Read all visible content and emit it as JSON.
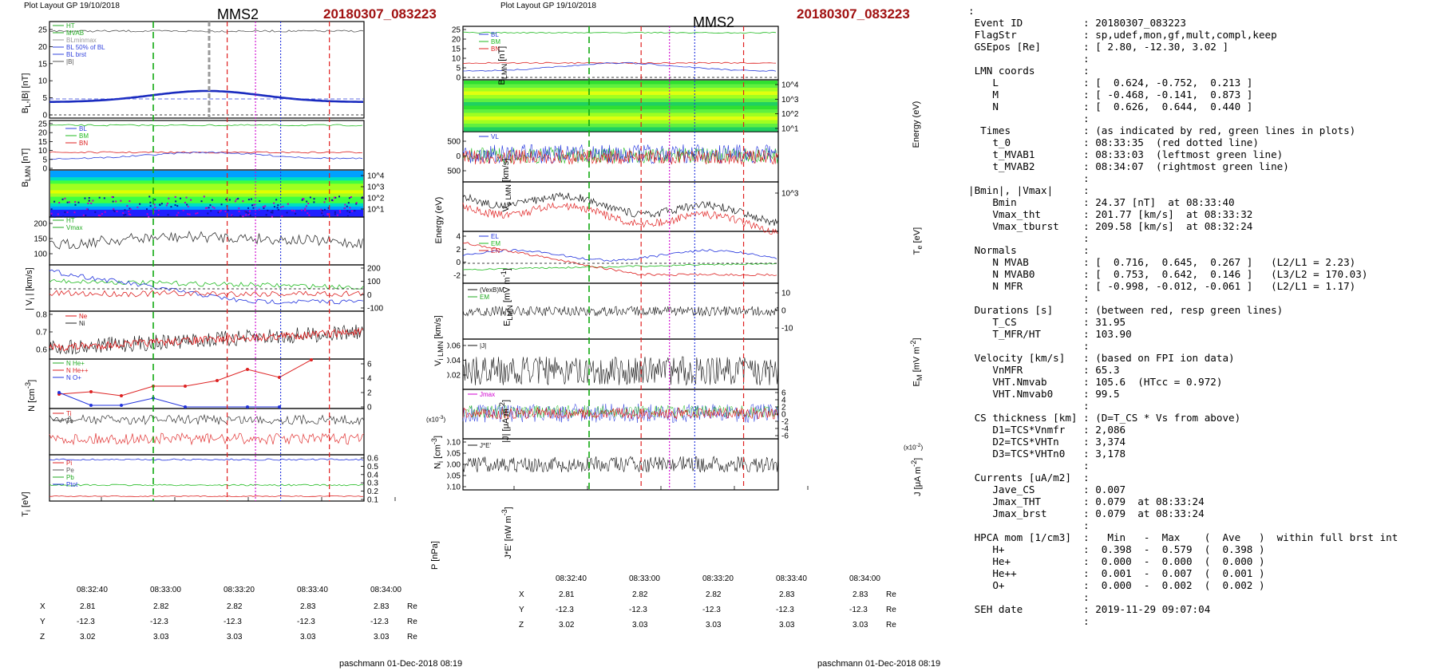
{
  "left": {
    "plot_layout": "Plot Layout GP 19/10/2018",
    "spacecraft": "MMS2",
    "event_id": "20180307_083223",
    "footer": "paschmann 01-Dec-2018 08:19",
    "time_ticks": [
      "08:32:40",
      "08:33:00",
      "08:33:20",
      "08:33:40",
      "08:34:00"
    ],
    "coord_rows": [
      {
        "label": "X",
        "values": [
          "2.81",
          "2.82",
          "2.82",
          "2.83",
          "2.83"
        ],
        "unit": "Re"
      },
      {
        "label": "Y",
        "values": [
          "-12.3",
          "-12.3",
          "-12.3",
          "-12.3",
          "-12.3"
        ],
        "unit": "Re"
      },
      {
        "label": "Z",
        "values": [
          "3.02",
          "3.03",
          "3.03",
          "3.03",
          "3.03"
        ],
        "unit": "Re"
      }
    ]
  },
  "right": {
    "plot_layout": "Plot Layout GP 19/10/2018",
    "spacecraft": "MMS2",
    "event_id": "20180307_083223",
    "footer": "paschmann 01-Dec-2018 08:19",
    "time_ticks": [
      "08:32:40",
      "08:33:00",
      "08:33:20",
      "08:33:40",
      "08:34:00"
    ],
    "coord_rows": [
      {
        "label": "X",
        "values": [
          "2.81",
          "2.82",
          "2.82",
          "2.83",
          "2.83"
        ],
        "unit": "Re"
      },
      {
        "label": "Y",
        "values": [
          "-12.3",
          "-12.3",
          "-12.3",
          "-12.3",
          "-12.3"
        ],
        "unit": "Re"
      },
      {
        "label": "Z",
        "values": [
          "3.02",
          "3.03",
          "3.03",
          "3.03",
          "3.03"
        ],
        "unit": "Re"
      }
    ]
  },
  "info_text": ":\n Event ID          : 20180307_083223\n FlagStr           : sp,udef,mon,gf,mult,compl,keep\n GSEpos [Re]       : [ 2.80, -12.30, 3.02 ]\n                   :\n LMN coords        :\n    L              : [  0.624, -0.752,  0.213 ]\n    M              : [ -0.468, -0.141,  0.873 ]\n    N              : [  0.626,  0.644,  0.440 ]\n                   :\n  Times            : (as indicated by red, green lines in plots)\n    t_0            : 08:33:35  (red dotted line)\n    t_MVAB1        : 08:33:03  (leftmost green line)\n    t_MVAB2        : 08:34:07  (rightmost green line)\n                   :\n|Bmin|, |Vmax|     :\n    Bmin           : 24.37 [nT]  at 08:33:40\n    Vmax_tht       : 201.77 [km/s]  at 08:33:32\n    Vmax_tburst    : 209.58 [km/s]  at 08:32:24\n                   :\n Normals           :\n    N MVAB         : [  0.716,  0.645,  0.267 ]   (L2/L1 = 2.23)\n    N MVAB0        : [  0.753,  0.642,  0.146 ]   (L3/L2 = 170.03)\n    N MFR          : [ -0.998, -0.012, -0.061 ]   (L2/L1 = 1.17)\n                   :\n Durations [s]     : (between red, resp green lines)\n    T_CS           : 31.95\n    T_MFR/HT       : 103.90\n                   :\n Velocity [km/s]   : (based on FPI ion data)\n    VnMFR          : 65.3\n    VHT.Nmvab      : 105.6  (HTcc = 0.972)\n    VHT.Nmvab0     : 99.5\n                   :\n CS thickness [km] : (D=T_CS * Vs from above)\n    D1=TCS*Vnmfr   : 2,086\n    D2=TCS*VHTn    : 3,374\n    D3=TCS*VHTn0   : 3,178\n                   :\n Currents [uA/m2]  :\n    Jave_CS        : 0.007\n    Jmax_THT       : 0.079  at 08:33:24\n    Jmax_brst      : 0.079  at 08:33:24\n                   :\n HPCA mom [1/cm3]  :   Min   -  Max    (  Ave   )  within full brst int\n    H+             :  0.398  -  0.579  (  0.398 )\n    He+            :  0.000  -  0.000  (  0.000 )\n    He++           :  0.001  -  0.007  (  0.001 )\n    O+             :  0.000  -  0.002  (  0.002 )\n                   :\n SEH date          : 2019-11-29 09:07:04\n                   :",
  "chart_data": [
    {
      "type": "line",
      "title": "MMS2 20180307_083223",
      "panels": [
        {
          "ylabel": "BL,|B| [nT]",
          "yticks": [
            "0",
            "5",
            "10",
            "15",
            "20",
            "25"
          ],
          "ylim": [
            0,
            27
          ],
          "legend": [
            "HT",
            "MVAB",
            "BLminmax",
            "BL 50% of BL",
            "BL brst",
            "|B|"
          ],
          "series": [
            {
              "name": "|B|",
              "color": "#555555",
              "level": 24.5
            },
            {
              "name": "BL",
              "color": "#1f2fbf",
              "shape": "hump"
            }
          ]
        },
        {
          "ylabel": "BLMN [nT]",
          "yticks": [
            "0",
            "5",
            "10",
            "15",
            "20",
            "25"
          ],
          "ylim": [
            0,
            27
          ],
          "legend": [
            "BL",
            "BM",
            "BN"
          ],
          "series": [
            {
              "name": "BL",
              "color": "#2b3fdc"
            },
            {
              "name": "BM",
              "color": "#22bb22"
            },
            {
              "name": "BN",
              "color": "#dd2222"
            }
          ]
        },
        {
          "ylabel": "Energy (eV)",
          "type": "heatmap",
          "yticks": [
            "10^1",
            "10^2",
            "10^3",
            "10^4"
          ]
        },
        {
          "ylabel": "|Vi| [km/s]",
          "yticks": [
            "100",
            "150",
            "200"
          ],
          "ylim": [
            60,
            215
          ],
          "legend": [
            "HT",
            "Vmax"
          ]
        },
        {
          "ylabel": "Vi LMN [km/s]",
          "yticks": [
            "-100",
            "0",
            "100",
            "200"
          ],
          "ylim": [
            -140,
            220
          ]
        },
        {
          "ylabel": "N [cm-3]",
          "yticks": [
            "0.6",
            "0.7",
            "0.8"
          ],
          "ylim": [
            0.55,
            0.82
          ],
          "legend": [
            "Ne",
            "Ni"
          ]
        },
        {
          "ylabel": "Ni [cm-3] (x10-3)",
          "yticks": [
            "0",
            "2",
            "4",
            "6"
          ],
          "ylim": [
            0,
            6
          ],
          "legend": [
            "N He+",
            "N He++",
            "N O+"
          ]
        },
        {
          "ylabel": "Ti [eV]",
          "legend": [
            "Ti",
            "Te"
          ]
        },
        {
          "ylabel": "P [nPa]",
          "yticks": [
            "0.1",
            "0.2",
            "0.3",
            "0.4",
            "0.5",
            "0.6"
          ],
          "ylim": [
            0.1,
            0.65
          ],
          "legend": [
            "Pi",
            "Pe",
            "Pb",
            "Ptot"
          ]
        }
      ]
    },
    {
      "type": "line",
      "title": "MMS2 20180307_083223",
      "panels": [
        {
          "ylabel": "BLMN [nT]",
          "yticks": [
            "0",
            "5",
            "10",
            "15",
            "20",
            "25"
          ],
          "ylim": [
            0,
            27
          ],
          "legend": [
            "BL",
            "BM",
            "BN"
          ]
        },
        {
          "ylabel": "Energy (eV)",
          "type": "heatmap",
          "yticks": [
            "10^1",
            "10^2",
            "10^3",
            "10^4"
          ]
        },
        {
          "ylabel": "Ve LMN [km/s]",
          "yticks": [
            "-500",
            "0",
            "500"
          ],
          "ylim": [
            -700,
            700
          ],
          "legend": [
            "VL"
          ]
        },
        {
          "ylabel": "Te [eV]",
          "yticks": [
            "10^3"
          ]
        },
        {
          "ylabel": "ELMN [mV m-1]",
          "yticks": [
            "-2",
            "0",
            "2",
            "4"
          ],
          "ylim": [
            -3,
            4.5
          ],
          "legend": [
            "EL",
            "EM",
            "EN"
          ]
        },
        {
          "ylabel": "EM [mV m-2]",
          "yticks": [
            "-10",
            "0",
            "10"
          ],
          "ylim": [
            -15,
            15
          ],
          "legend": [
            "(VexB)M",
            "EM"
          ]
        },
        {
          "ylabel": "|J| [uA m-2]",
          "yticks": [
            "0.02",
            "0.04",
            "0.06"
          ],
          "ylim": [
            0,
            0.07
          ],
          "legend": [
            "|J|"
          ]
        },
        {
          "ylabel": "J [uA m-2] (x10-2)",
          "yticks": [
            "-6",
            "-4",
            "-2",
            "0",
            "2",
            "4",
            "6"
          ],
          "ylim": [
            -7,
            7
          ],
          "legend": [
            "Jmax"
          ]
        },
        {
          "ylabel": "J*E' [nW m-3]",
          "yticks": [
            "-0.10",
            "-0.05",
            "0.00",
            "0.05",
            "0.10"
          ],
          "ylim": [
            -0.11,
            0.11
          ],
          "legend": [
            "J*E'"
          ]
        }
      ]
    }
  ]
}
